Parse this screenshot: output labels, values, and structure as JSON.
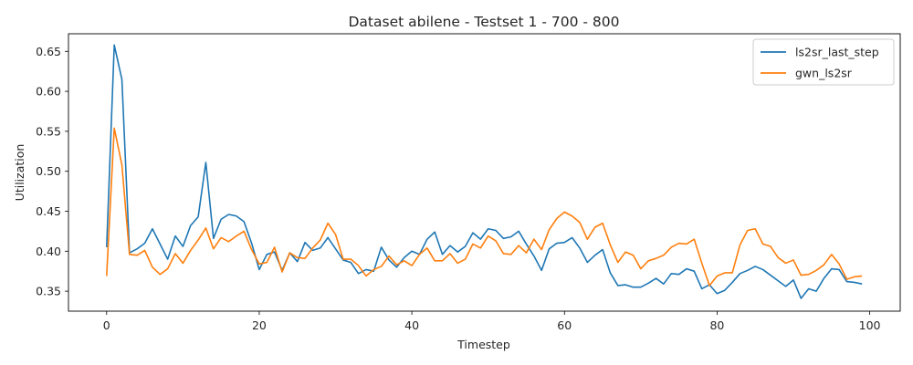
{
  "chart_data": {
    "type": "line",
    "title": "Dataset abilene - Testset 1 - 700 - 800",
    "xlabel": "Timestep",
    "ylabel": "Utilization",
    "xlim": [
      -5,
      104
    ],
    "ylim": [
      0.325,
      0.672
    ],
    "xticks": [
      0,
      20,
      40,
      60,
      80,
      100
    ],
    "yticks": [
      0.35,
      0.4,
      0.45,
      0.5,
      0.55,
      0.6,
      0.65
    ],
    "ytick_labels": [
      "0.35",
      "0.40",
      "0.45",
      "0.50",
      "0.55",
      "0.60",
      "0.65"
    ],
    "grid": false,
    "legend_position": "top-right",
    "series": [
      {
        "name": "ls2sr_last_step",
        "color": "#1f77b4",
        "values": [
          0.405,
          0.658,
          0.615,
          0.398,
          0.403,
          0.41,
          0.428,
          0.409,
          0.39,
          0.419,
          0.406,
          0.432,
          0.443,
          0.511,
          0.416,
          0.44,
          0.446,
          0.444,
          0.437,
          0.41,
          0.377,
          0.396,
          0.399,
          0.376,
          0.398,
          0.387,
          0.411,
          0.401,
          0.404,
          0.417,
          0.403,
          0.389,
          0.386,
          0.372,
          0.377,
          0.375,
          0.405,
          0.389,
          0.38,
          0.392,
          0.4,
          0.396,
          0.415,
          0.424,
          0.396,
          0.407,
          0.399,
          0.406,
          0.423,
          0.415,
          0.428,
          0.426,
          0.416,
          0.418,
          0.425,
          0.409,
          0.394,
          0.376,
          0.403,
          0.41,
          0.411,
          0.417,
          0.404,
          0.386,
          0.395,
          0.402,
          0.373,
          0.357,
          0.358,
          0.355,
          0.355,
          0.36,
          0.366,
          0.359,
          0.372,
          0.371,
          0.378,
          0.375,
          0.353,
          0.358,
          0.347,
          0.351,
          0.361,
          0.372,
          0.376,
          0.381,
          0.377,
          0.37,
          0.363,
          0.356,
          0.364,
          0.341,
          0.353,
          0.35,
          0.366,
          0.378,
          0.377,
          0.362,
          0.361,
          0.359
        ]
      },
      {
        "name": "gwn_ls2sr",
        "color": "#ff7f0e",
        "values": [
          0.369,
          0.554,
          0.508,
          0.396,
          0.395,
          0.401,
          0.38,
          0.371,
          0.378,
          0.397,
          0.385,
          0.401,
          0.414,
          0.429,
          0.403,
          0.417,
          0.412,
          0.419,
          0.425,
          0.402,
          0.384,
          0.386,
          0.405,
          0.374,
          0.398,
          0.392,
          0.391,
          0.404,
          0.414,
          0.435,
          0.421,
          0.39,
          0.39,
          0.382,
          0.369,
          0.377,
          0.381,
          0.394,
          0.383,
          0.388,
          0.382,
          0.396,
          0.404,
          0.388,
          0.388,
          0.397,
          0.385,
          0.39,
          0.409,
          0.404,
          0.419,
          0.413,
          0.397,
          0.396,
          0.407,
          0.398,
          0.415,
          0.402,
          0.427,
          0.441,
          0.449,
          0.444,
          0.436,
          0.415,
          0.43,
          0.435,
          0.408,
          0.386,
          0.399,
          0.395,
          0.378,
          0.388,
          0.391,
          0.395,
          0.405,
          0.41,
          0.409,
          0.415,
          0.385,
          0.357,
          0.369,
          0.373,
          0.373,
          0.408,
          0.426,
          0.428,
          0.409,
          0.406,
          0.392,
          0.385,
          0.389,
          0.37,
          0.371,
          0.376,
          0.383,
          0.396,
          0.384,
          0.365,
          0.368,
          0.369
        ]
      }
    ]
  }
}
